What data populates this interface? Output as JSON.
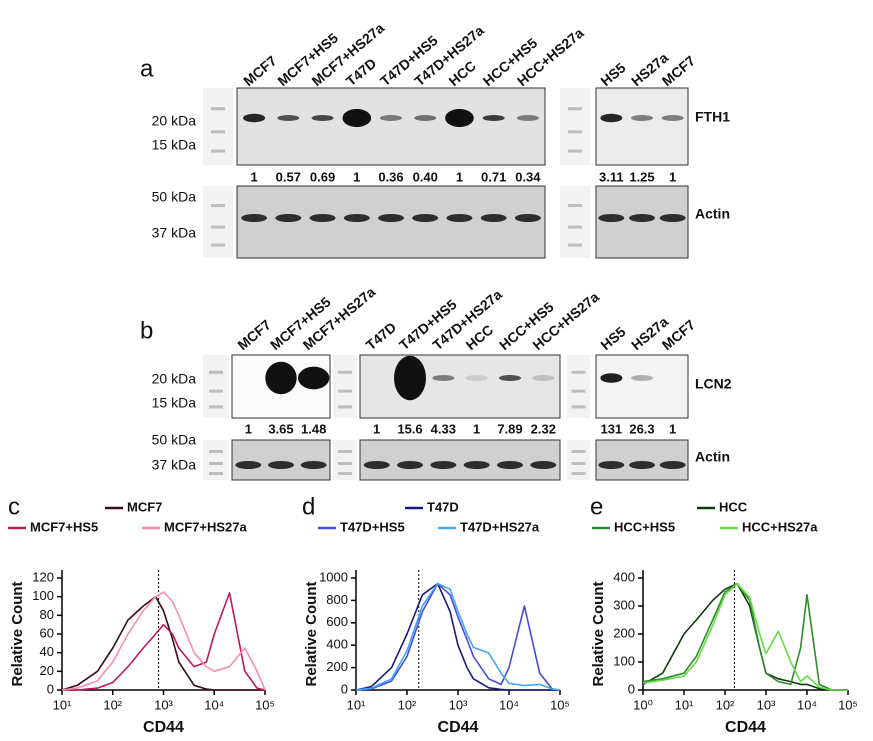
{
  "panel_a": {
    "label": "a",
    "lane_groups": [
      [
        "MCF7",
        "MCF7+HS5",
        "MCF7+HS27a",
        "T47D",
        "T47D+HS5",
        "T47D+HS27a",
        "HCC",
        "HCC+HS5",
        "HCC+HS27a"
      ],
      [
        "HS5",
        "HS27a",
        "MCF7"
      ]
    ],
    "ratio_groups": [
      [
        "1",
        "0.57",
        "0.69",
        "1",
        "0.36",
        "0.40",
        "1",
        "0.71",
        "0.34"
      ],
      [
        "3.11",
        "1.25",
        "1"
      ]
    ],
    "markers": [
      "20 kDa",
      "15 kDa",
      "50 kDa",
      "37 kDa"
    ],
    "targets": [
      "FTH1",
      "Actin"
    ]
  },
  "panel_b": {
    "label": "b",
    "lane_groups": [
      [
        "MCF7",
        "MCF7+HS5",
        "MCF7+HS27a"
      ],
      [
        "T47D",
        "T47D+HS5",
        "T47D+HS27a",
        "HCC",
        "HCC+HS5",
        "HCC+HS27a"
      ],
      [
        "HS5",
        "HS27a",
        "MCF7"
      ]
    ],
    "ratio_groups": [
      [
        "1",
        "3.65",
        "1.48"
      ],
      [
        "1",
        "15.6",
        "4.33",
        "1",
        "7.89",
        "2.32"
      ],
      [
        "131",
        "26.3",
        "1"
      ]
    ],
    "markers": [
      "20 kDa",
      "15 kDa",
      "50 kDa",
      "37 kDa"
    ],
    "targets": [
      "LCN2",
      "Actin"
    ]
  },
  "chart_data": [
    {
      "type": "line",
      "panel": "c",
      "xlabel": "CD44",
      "ylabel": "Relative Count",
      "xscale": "log",
      "x": [
        10,
        20,
        50,
        100,
        200,
        400,
        700,
        1000,
        1500,
        2000,
        4000,
        7000,
        10000,
        20000,
        40000,
        70000,
        100000
      ],
      "series": [
        {
          "name": "MCF7",
          "color": "#3d0a1e",
          "values": [
            0,
            5,
            20,
            45,
            75,
            90,
            100,
            85,
            55,
            30,
            5,
            1,
            0,
            0,
            0,
            0,
            0
          ]
        },
        {
          "name": "MCF7+HS5",
          "color": "#c2185b",
          "values": [
            0,
            0,
            2,
            8,
            25,
            45,
            60,
            70,
            60,
            45,
            25,
            30,
            60,
            104,
            20,
            2,
            0
          ]
        },
        {
          "name": "MCF7+HS27a",
          "color": "#f48fb1",
          "values": [
            0,
            2,
            10,
            30,
            60,
            85,
            100,
            105,
            95,
            80,
            40,
            25,
            20,
            25,
            45,
            20,
            0
          ]
        }
      ],
      "vline": 800,
      "xlim": [
        10,
        100000
      ],
      "xticks": [
        {
          "value": 10,
          "label": "10¹"
        },
        {
          "value": 100,
          "label": "10²"
        },
        {
          "value": 1000,
          "label": "10³"
        },
        {
          "value": 10000,
          "label": "10⁴"
        },
        {
          "value": 100000,
          "label": "10⁵"
        }
      ],
      "ylim": [
        0,
        120
      ],
      "yticks": [
        0,
        20,
        40,
        60,
        80,
        100,
        120
      ]
    },
    {
      "type": "line",
      "panel": "d",
      "xlabel": "CD44",
      "ylabel": "Relative Count",
      "xscale": "log",
      "x": [
        10,
        20,
        50,
        100,
        200,
        400,
        700,
        1000,
        1500,
        2000,
        4000,
        7000,
        10000,
        20000,
        40000,
        70000,
        100000
      ],
      "series": [
        {
          "name": "T47D",
          "color": "#1a1a7a",
          "values": [
            0,
            30,
            200,
            500,
            850,
            950,
            700,
            400,
            200,
            100,
            20,
            5,
            0,
            0,
            0,
            0,
            0
          ]
        },
        {
          "name": "T47D+HS5",
          "color": "#4a4adb",
          "values": [
            0,
            10,
            80,
            300,
            700,
            950,
            850,
            650,
            450,
            300,
            100,
            50,
            200,
            750,
            150,
            10,
            0
          ]
        },
        {
          "name": "T47D+HS27a",
          "color": "#42a5f5",
          "values": [
            0,
            15,
            100,
            350,
            750,
            950,
            900,
            700,
            500,
            380,
            330,
            150,
            60,
            40,
            50,
            10,
            0
          ]
        }
      ],
      "vline": 170,
      "xlim": [
        10,
        100000
      ],
      "xticks": [
        {
          "value": 10,
          "label": "10¹"
        },
        {
          "value": 100,
          "label": "10²"
        },
        {
          "value": 1000,
          "label": "10³"
        },
        {
          "value": 10000,
          "label": "10⁴"
        },
        {
          "value": 100000,
          "label": "10⁵"
        }
      ],
      "ylim": [
        0,
        1000
      ],
      "yticks": [
        0,
        200,
        400,
        600,
        800,
        1000
      ]
    },
    {
      "type": "line",
      "panel": "e",
      "xlabel": "CD44",
      "ylabel": "Relative Count",
      "xscale": "log",
      "x": [
        1,
        3,
        10,
        20,
        50,
        100,
        200,
        400,
        700,
        1000,
        2000,
        4000,
        7000,
        10000,
        20000,
        40000,
        100000
      ],
      "series": [
        {
          "name": "HCC",
          "color": "#0d3d0d",
          "values": [
            20,
            60,
            200,
            250,
            320,
            360,
            380,
            300,
            150,
            60,
            40,
            30,
            20,
            20,
            5,
            0,
            0
          ]
        },
        {
          "name": "HCC+HS5",
          "color": "#2e8b2e",
          "values": [
            30,
            40,
            60,
            120,
            250,
            350,
            380,
            320,
            150,
            60,
            30,
            20,
            150,
            340,
            20,
            0,
            0
          ]
        },
        {
          "name": "HCC+HS27a",
          "color": "#66dd44",
          "values": [
            25,
            35,
            50,
            100,
            230,
            340,
            380,
            330,
            200,
            130,
            210,
            100,
            30,
            50,
            10,
            0,
            0
          ]
        }
      ],
      "vline": 170,
      "xlim": [
        1,
        100000
      ],
      "xticks": [
        {
          "value": 1,
          "label": "10⁰"
        },
        {
          "value": 10,
          "label": "10¹"
        },
        {
          "value": 100,
          "label": "10²"
        },
        {
          "value": 1000,
          "label": "10³"
        },
        {
          "value": 10000,
          "label": "10⁴"
        },
        {
          "value": 100000,
          "label": "10⁵"
        }
      ],
      "ylim": [
        0,
        400
      ],
      "yticks": [
        0,
        100,
        200,
        300,
        400
      ]
    }
  ]
}
